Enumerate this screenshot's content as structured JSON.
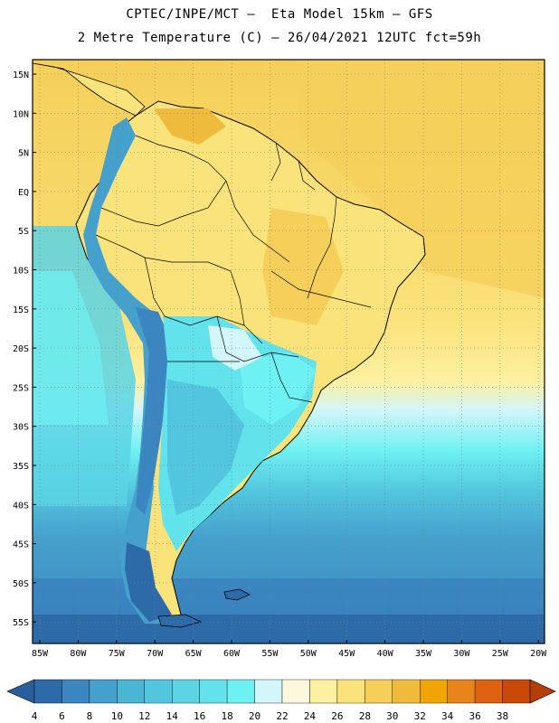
{
  "title": {
    "line1": "CPTEC/INPE/MCT –  Eta Model 15km – GFS",
    "line2": "2 Metre Temperature (C) – 26/04/2021 12UTC fct=59h"
  },
  "map": {
    "lat_labels": [
      "15N",
      "10N",
      "5N",
      "EQ",
      "5S",
      "10S",
      "15S",
      "20S",
      "25S",
      "30S",
      "35S",
      "40S",
      "45S",
      "50S",
      "55S"
    ],
    "lon_labels": [
      "85W",
      "80W",
      "75W",
      "70W",
      "65W",
      "60W",
      "55W",
      "50W",
      "45W",
      "40W",
      "35W",
      "30W",
      "25W",
      "20W"
    ]
  },
  "colorbar": {
    "labels": [
      "4",
      "6",
      "8",
      "10",
      "12",
      "14",
      "16",
      "18",
      "20",
      "22",
      "24",
      "26",
      "28",
      "30",
      "32",
      "34",
      "36",
      "38"
    ],
    "colors": [
      "#2c6ba8",
      "#3b86c0",
      "#45a0cc",
      "#4bb5d6",
      "#52c6de",
      "#5bd4e4",
      "#62e2ea",
      "#6ef1f2",
      "#d2f6fa",
      "#fdf7dd",
      "#fdf0a0",
      "#fbe37c",
      "#f5cf5a",
      "#efbb3d",
      "#f0a500",
      "#e8851a",
      "#df6210",
      "#c94a08"
    ],
    "low_color": "#2a5f9e",
    "high_color": "#b53d08"
  },
  "colors": {
    "frame": "#000000",
    "grid": "#808080"
  }
}
